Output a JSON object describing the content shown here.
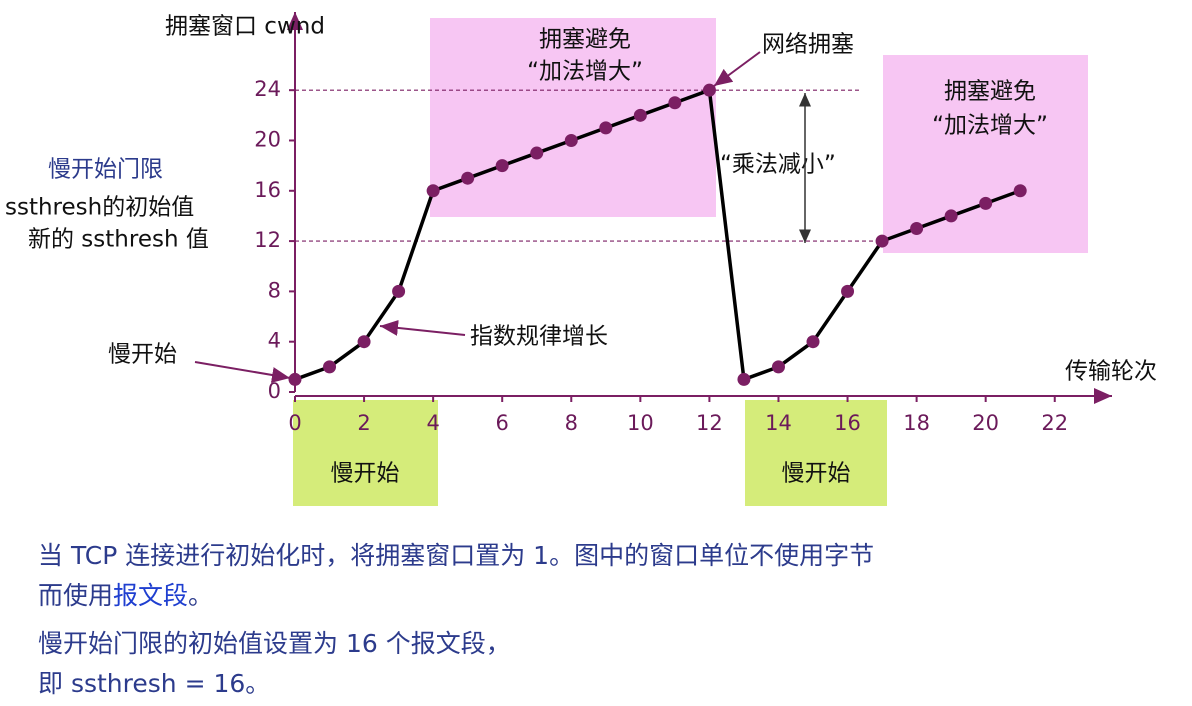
{
  "chart_data": {
    "type": "line",
    "y_label": "拥塞窗口 cwnd",
    "x_label": "传输轮次",
    "x": [
      0,
      1,
      2,
      3,
      4,
      5,
      6,
      7,
      8,
      9,
      10,
      11,
      12,
      13,
      14,
      15,
      16,
      17,
      18,
      19,
      20,
      21
    ],
    "series": [
      {
        "color": "#000000",
        "marker_color": "#7b1f63",
        "values": [
          1,
          2,
          4,
          8,
          16,
          17,
          18,
          19,
          20,
          21,
          22,
          23,
          24,
          1,
          2,
          4,
          8,
          12,
          13,
          14,
          15,
          16
        ]
      }
    ],
    "xlim": [
      0,
      23.6
    ],
    "ylim": [
      0,
      29.5
    ],
    "xticks": [
      0,
      2,
      4,
      6,
      8,
      10,
      12,
      14,
      16,
      18,
      20,
      22
    ],
    "yticks": [
      0,
      4,
      8,
      12,
      16,
      20,
      24
    ],
    "hlines": [
      24,
      12
    ],
    "annotations": {
      "ca1_line1": "拥塞避免",
      "ca1_line2": "“加法增大”",
      "ca2_line1": "拥塞避免",
      "ca2_line2": "“加法增大”",
      "congestion": "网络拥塞",
      "mult_decrease": "“乘法减小”",
      "ssthresh_label": "慢开始门限",
      "ssthresh_initial": "ssthresh的初始值",
      "ssthresh_new": "新的 ssthresh 值",
      "slow_start_left": "慢开始",
      "exponential": "指数规律增长",
      "slow_start_box1": "慢开始",
      "slow_start_box2": "慢开始"
    }
  },
  "caption": {
    "line1": "当 TCP 连接进行初始化时，将拥塞窗口置为 1。图中的窗口单位不使用字节",
    "line2_start": "而使用",
    "line2_highlight": "报文段",
    "line2_end": "。",
    "line3": "慢开始门限的初始值设置为 16 个报文段，",
    "line4": "即 ssthresh = 16。"
  }
}
